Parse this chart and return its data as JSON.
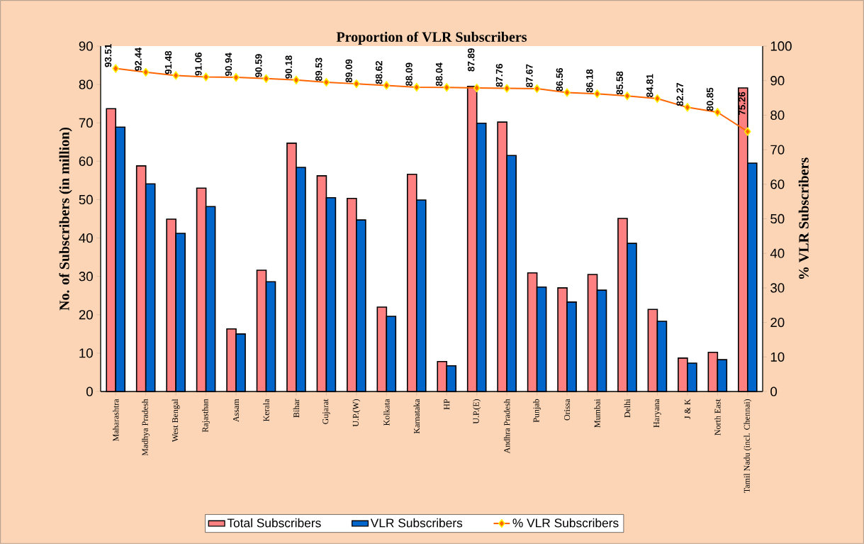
{
  "chart_data": {
    "type": "bar",
    "title": "Proportion of VLR Subscribers",
    "ylabel": "No. of Subscribers (in million)",
    "y2label": "% VLR Subscribers",
    "categories": [
      "Maharashtra",
      "Madhya Pradesh",
      "West Bengal",
      "Rajasthan",
      "Assam",
      "Kerala",
      "Bihar",
      "Gujarat",
      "U.P.(W)",
      "Kolkata",
      "Karnataka",
      "HP",
      "U.P.(E)",
      "Andhra Pradesh",
      "Punjab",
      "Orissa",
      "Mumbai",
      "Delhi",
      "Haryana",
      "J & K",
      "North East",
      "Tamil Nadu (incl. Chennai)"
    ],
    "series": [
      {
        "name": "Total Subscribers",
        "type": "bar",
        "color": "#ff8080",
        "values": [
          73.7,
          58.8,
          44.9,
          53.0,
          16.3,
          31.6,
          64.7,
          56.2,
          50.3,
          22.0,
          56.6,
          7.8,
          79.5,
          70.2,
          30.9,
          27.0,
          30.5,
          45.1,
          21.4,
          8.7,
          10.2,
          79.1
        ]
      },
      {
        "name": "VLR Subscribers",
        "type": "bar",
        "color": "#0066cc",
        "values": [
          68.9,
          54.1,
          41.2,
          48.2,
          15.0,
          28.6,
          58.4,
          50.5,
          44.7,
          19.6,
          49.9,
          6.7,
          69.9,
          61.5,
          27.2,
          23.3,
          26.4,
          38.6,
          18.3,
          7.4,
          8.3,
          59.5
        ]
      },
      {
        "name": "% VLR Subscribers",
        "type": "line",
        "axis": "y2",
        "color": "#ff6600",
        "marker": "diamond",
        "values": [
          93.51,
          92.44,
          91.48,
          91.06,
          90.94,
          90.59,
          90.18,
          89.53,
          89.09,
          88.62,
          88.09,
          88.04,
          87.89,
          87.76,
          87.67,
          86.56,
          86.18,
          85.58,
          84.81,
          82.27,
          80.85,
          75.26
        ],
        "value_labels": [
          "93.51",
          "92.44",
          "91.48",
          "91.06",
          "90.94",
          "90.59",
          "90.18",
          "89.53",
          "89.09",
          "88.62",
          "88.09",
          "88.04",
          "87.89",
          "87.76",
          "87.67",
          "86.56",
          "86.18",
          "85.58",
          "84.81",
          "82.27",
          "80.85",
          "75.26"
        ]
      }
    ],
    "ylim": [
      0,
      90
    ],
    "yticks": [
      0,
      10,
      20,
      30,
      40,
      50,
      60,
      70,
      80,
      90
    ],
    "y2lim": [
      0,
      100
    ],
    "y2ticks": [
      0,
      10,
      20,
      30,
      40,
      50,
      60,
      70,
      80,
      90,
      100
    ],
    "grid": false,
    "legend": "bottom"
  }
}
